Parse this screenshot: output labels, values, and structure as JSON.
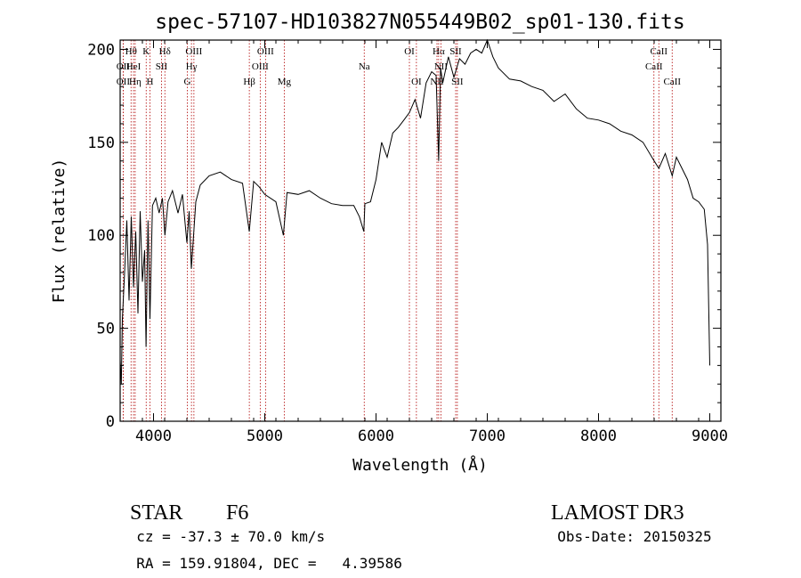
{
  "chart_data": {
    "type": "line",
    "title": "spec-57107-HD103827N055449B02_sp01-130.fits",
    "xlabel": "Wavelength (Å)",
    "ylabel": "Flux (relative)",
    "xlim": [
      3700,
      9100
    ],
    "ylim": [
      0,
      205
    ],
    "x_ticks": [
      4000,
      5000,
      6000,
      7000,
      8000,
      9000
    ],
    "x_tick_labels": [
      "4000",
      "5000",
      "6000",
      "7000",
      "8000",
      "9000"
    ],
    "y_ticks": [
      0,
      50,
      100,
      150,
      200
    ],
    "y_tick_labels": [
      "0",
      "50",
      "100",
      "150",
      "200"
    ],
    "grid": false,
    "series": [
      {
        "x": [
          3700,
          3710,
          3720,
          3740,
          3760,
          3780,
          3800,
          3820,
          3840,
          3860,
          3880,
          3900,
          3920,
          3933,
          3950,
          3968,
          3990,
          4020,
          4050,
          4080,
          4102,
          4130,
          4170,
          4220,
          4260,
          4300,
          4320,
          4340,
          4380,
          4420,
          4500,
          4600,
          4700,
          4800,
          4861,
          4900,
          4950,
          5000,
          5100,
          5167,
          5200,
          5300,
          5400,
          5500,
          5600,
          5700,
          5800,
          5850,
          5890,
          5900,
          5950,
          6000,
          6050,
          6100,
          6150,
          6200,
          6250,
          6300,
          6350,
          6400,
          6450,
          6500,
          6540,
          6563,
          6580,
          6600,
          6650,
          6700,
          6750,
          6800,
          6850,
          6900,
          6950,
          7000,
          7050,
          7100,
          7200,
          7300,
          7400,
          7500,
          7600,
          7700,
          7800,
          7900,
          8000,
          8100,
          8200,
          8300,
          8400,
          8500,
          8542,
          8600,
          8662,
          8700,
          8800,
          8850,
          8900,
          8950,
          8980,
          9000
        ],
        "y": [
          33,
          20,
          55,
          80,
          108,
          65,
          110,
          72,
          102,
          58,
          113,
          75,
          92,
          40,
          108,
          55,
          116,
          120,
          112,
          120,
          100,
          118,
          124,
          112,
          122,
          96,
          113,
          82,
          118,
          127,
          132,
          134,
          130,
          128,
          102,
          129,
          126,
          122,
          118,
          100,
          123,
          122,
          124,
          120,
          117,
          116,
          116,
          110,
          102,
          117,
          118,
          130,
          150,
          142,
          155,
          158,
          162,
          166,
          173,
          163,
          182,
          188,
          186,
          140,
          190,
          182,
          196,
          185,
          195,
          192,
          198,
          200,
          198,
          205,
          196,
          190,
          184,
          183,
          180,
          178,
          172,
          176,
          168,
          163,
          162,
          160,
          156,
          154,
          150,
          140,
          136,
          144,
          132,
          142,
          130,
          120,
          118,
          114,
          95,
          30
        ]
      }
    ],
    "lines": [
      {
        "label": "OII",
        "wavelength": 3727,
        "row": 2
      },
      {
        "label": "OII",
        "wavelength": 3727,
        "row": 3
      },
      {
        "label": "Hθ",
        "wavelength": 3798,
        "row": 1
      },
      {
        "label": "HeI",
        "wavelength": 3820,
        "row": 2
      },
      {
        "label": "Hη",
        "wavelength": 3835,
        "row": 3
      },
      {
        "label": "K",
        "wavelength": 3934,
        "row": 1
      },
      {
        "label": "H",
        "wavelength": 3968,
        "row": 3
      },
      {
        "label": "SII",
        "wavelength": 4072,
        "row": 2
      },
      {
        "label": "Hδ",
        "wavelength": 4102,
        "row": 1
      },
      {
        "label": "G",
        "wavelength": 4304,
        "row": 3
      },
      {
        "label": "Hγ",
        "wavelength": 4341,
        "row": 2
      },
      {
        "label": "OIII",
        "wavelength": 4363,
        "row": 1
      },
      {
        "label": "Hβ",
        "wavelength": 4861,
        "row": 3
      },
      {
        "label": "OIII",
        "wavelength": 4959,
        "row": 2
      },
      {
        "label": "OIII",
        "wavelength": 5007,
        "row": 1
      },
      {
        "label": "Mg",
        "wavelength": 5175,
        "row": 3
      },
      {
        "label": "Na",
        "wavelength": 5894,
        "row": 2
      },
      {
        "label": "OI",
        "wavelength": 6300,
        "row": 1
      },
      {
        "label": "OI",
        "wavelength": 6363,
        "row": 3
      },
      {
        "label": "NII",
        "wavelength": 6548,
        "row": 3
      },
      {
        "label": "Hα",
        "wavelength": 6563,
        "row": 1
      },
      {
        "label": "NII",
        "wavelength": 6583,
        "row": 2
      },
      {
        "label": "SII",
        "wavelength": 6716,
        "row": 1
      },
      {
        "label": "SII",
        "wavelength": 6731,
        "row": 3
      },
      {
        "label": "CaII",
        "wavelength": 8498,
        "row": 2
      },
      {
        "label": "CaII",
        "wavelength": 8542,
        "row": 1
      },
      {
        "label": "CaII",
        "wavelength": 8662,
        "row": 3
      }
    ]
  },
  "info": {
    "class": "STAR",
    "subclass": "F6",
    "survey": "LAMOST DR3",
    "cz": "cz = -37.3 ± 70.0 km/s",
    "obs_date": "Obs-Date: 20150325",
    "coords": "RA = 159.91804, DEC =   4.39586"
  }
}
